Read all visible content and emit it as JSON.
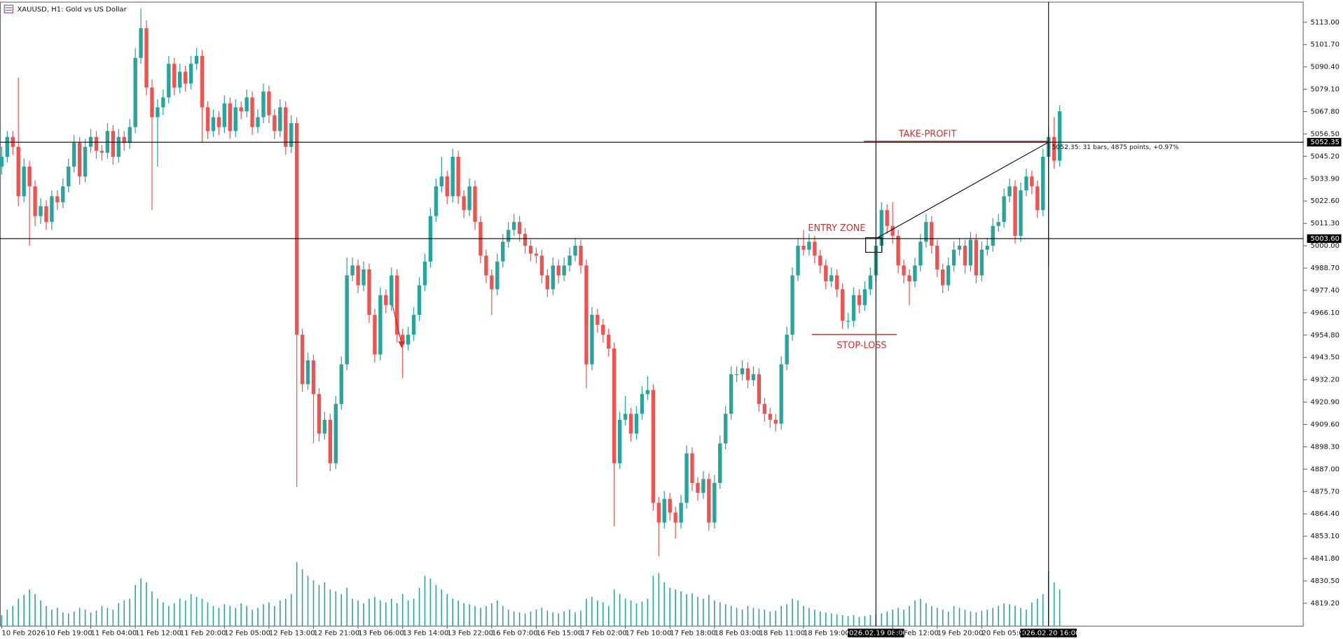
{
  "header": {
    "title": "XAUUSD, H1:  Gold vs US Dollar"
  },
  "chart_data": {
    "type": "candlestick",
    "up_color": "#26a69a",
    "down_color": "#ef5350",
    "volume_color": "#26a69a",
    "xlim": [
      -0.3,
      233.8
    ],
    "ylim": [
      4807.6,
      5123.4
    ],
    "yticks": [
      {
        "value": 5113,
        "label": "5113.00"
      },
      {
        "value": 5101.7,
        "label": "5101.70"
      },
      {
        "value": 5090.4,
        "label": "5090.40"
      },
      {
        "value": 5079.1,
        "label": "5079.10"
      },
      {
        "value": 5067.8,
        "label": "5067.80"
      },
      {
        "value": 5056.5,
        "label": "5056.50"
      },
      {
        "value": 5045.2,
        "label": "5045.20"
      },
      {
        "value": 5033.9,
        "label": "5033.90"
      },
      {
        "value": 5022.6,
        "label": "5022.60"
      },
      {
        "value": 5011.3,
        "label": "5011.30"
      },
      {
        "value": 5000,
        "label": "5000.00"
      },
      {
        "value": 4988.7,
        "label": "4988.70"
      },
      {
        "value": 4977.4,
        "label": "4977.40"
      },
      {
        "value": 4966.1,
        "label": "4966.10"
      },
      {
        "value": 4954.8,
        "label": "4954.80"
      },
      {
        "value": 4943.5,
        "label": "4943.50"
      },
      {
        "value": 4932.2,
        "label": "4932.20"
      },
      {
        "value": 4920.9,
        "label": "4920.90"
      },
      {
        "value": 4909.6,
        "label": "4909.60"
      },
      {
        "value": 4898.3,
        "label": "4898.30"
      },
      {
        "value": 4887,
        "label": "4887.00"
      },
      {
        "value": 4875.7,
        "label": "4875.70"
      },
      {
        "value": 4864.4,
        "label": "4864.40"
      },
      {
        "value": 4853.1,
        "label": "4853.10"
      },
      {
        "value": 4841.8,
        "label": "4841.80"
      },
      {
        "value": 4830.5,
        "label": "4830.50"
      },
      {
        "value": 4819.2,
        "label": "4819.20"
      }
    ],
    "xticks": [
      {
        "value": 0,
        "label": "10 Feb 2026"
      },
      {
        "value": 8,
        "label": "10 Feb 19:00"
      },
      {
        "value": 16,
        "label": "11 Feb 04:00"
      },
      {
        "value": 24,
        "label": "11 Feb 12:00"
      },
      {
        "value": 32,
        "label": "11 Feb 20:00"
      },
      {
        "value": 40,
        "label": "12 Feb 05:00"
      },
      {
        "value": 48,
        "label": "12 Feb 13:00"
      },
      {
        "value": 56,
        "label": "12 Feb 21:00"
      },
      {
        "value": 64,
        "label": "13 Feb 06:00"
      },
      {
        "value": 72,
        "label": "13 Feb 14:00"
      },
      {
        "value": 80,
        "label": "13 Feb 22:00"
      },
      {
        "value": 88,
        "label": "16 Feb 07:00"
      },
      {
        "value": 96,
        "label": "16 Feb 15:00"
      },
      {
        "value": 104,
        "label": "17 Feb 02:00"
      },
      {
        "value": 112,
        "label": "17 Feb 10:00"
      },
      {
        "value": 120,
        "label": "17 Feb 18:00"
      },
      {
        "value": 128,
        "label": "18 Feb 03:00"
      },
      {
        "value": 136,
        "label": "18 Feb 11:00"
      },
      {
        "value": 144,
        "label": "18 Feb 19:00"
      },
      {
        "value": 160,
        "label": "19 Feb 12:00"
      },
      {
        "value": 168,
        "label": "19 Feb 20:00"
      },
      {
        "value": 176,
        "label": "20 Feb 05:00"
      }
    ],
    "levels": [
      {
        "value": 5052.35,
        "label": "5052.35"
      },
      {
        "value": 5003.6,
        "label": "5003.60"
      }
    ],
    "cursor_times": [
      {
        "value": 157,
        "label": "2026.02.19 08:00"
      },
      {
        "value": 188,
        "label": "2026.02.20 16:00"
      }
    ],
    "annotations": {
      "take_profit": "TAKE-PROFIT",
      "entry_zone": "ENTRY ZONE",
      "stop_loss": "STOP-LOSS",
      "measure": "5052.35: 31 bars, 4875 points, +0.97%"
    },
    "ohlc": [
      [
        5040,
        5050,
        5036,
        5045
      ],
      [
        5045,
        5058,
        5042,
        5055
      ],
      [
        5055,
        5058,
        5046,
        5050
      ],
      [
        5050,
        5085,
        5020,
        5025
      ],
      [
        5025,
        5044,
        5022,
        5040
      ],
      [
        5040,
        5043,
        5000,
        5030
      ],
      [
        5030,
        5033,
        5010,
        5015
      ],
      [
        5015,
        5024,
        5011,
        5020
      ],
      [
        5020,
        5023,
        5008,
        5012
      ],
      [
        5012,
        5028,
        5008,
        5025
      ],
      [
        5025,
        5028,
        5018,
        5022
      ],
      [
        5022,
        5034,
        5019,
        5030
      ],
      [
        5030,
        5044,
        5027,
        5040
      ],
      [
        5040,
        5056,
        5037,
        5052
      ],
      [
        5052,
        5055,
        5031,
        5035
      ],
      [
        5035,
        5054,
        5032,
        5050
      ],
      [
        5050,
        5059,
        5047,
        5055
      ],
      [
        5055,
        5058,
        5044,
        5048
      ],
      [
        5048,
        5051,
        5043,
        5047
      ],
      [
        5047,
        5062,
        5044,
        5058
      ],
      [
        5058,
        5061,
        5041,
        5045
      ],
      [
        5045,
        5059,
        5042,
        5055
      ],
      [
        5055,
        5058,
        5048,
        5052
      ],
      [
        5052,
        5064,
        5049,
        5060
      ],
      [
        5060,
        5100,
        5057,
        5095
      ],
      [
        5095,
        5120,
        5092,
        5110
      ],
      [
        5110,
        5114,
        5076,
        5080
      ],
      [
        5080,
        5084,
        5018,
        5065
      ],
      [
        5065,
        5074,
        5040,
        5070
      ],
      [
        5070,
        5079,
        5066,
        5075
      ],
      [
        5075,
        5096,
        5072,
        5092
      ],
      [
        5092,
        5095,
        5076,
        5080
      ],
      [
        5080,
        5092,
        5077,
        5088
      ],
      [
        5088,
        5091,
        5078,
        5082
      ],
      [
        5082,
        5096,
        5079,
        5092
      ],
      [
        5092,
        5100,
        5089,
        5096
      ],
      [
        5096,
        5099,
        5052,
        5070
      ],
      [
        5070,
        5073,
        5054,
        5058
      ],
      [
        5058,
        5069,
        5055,
        5065
      ],
      [
        5065,
        5068,
        5056,
        5060
      ],
      [
        5060,
        5076,
        5057,
        5072
      ],
      [
        5072,
        5075,
        5054,
        5058
      ],
      [
        5058,
        5074,
        5055,
        5070
      ],
      [
        5070,
        5073,
        5064,
        5068
      ],
      [
        5068,
        5079,
        5065,
        5075
      ],
      [
        5075,
        5078,
        5056,
        5060
      ],
      [
        5060,
        5069,
        5057,
        5065
      ],
      [
        5065,
        5082,
        5062,
        5078
      ],
      [
        5078,
        5081,
        5062,
        5066
      ],
      [
        5066,
        5069,
        5054,
        5058
      ],
      [
        5058,
        5074,
        5055,
        5070
      ],
      [
        5070,
        5073,
        5046,
        5050
      ],
      [
        5050,
        5066,
        5047,
        5062
      ],
      [
        5062,
        5065,
        4878,
        4955
      ],
      [
        4955,
        4958,
        4926,
        4930
      ],
      [
        4930,
        4946,
        4927,
        4942
      ],
      [
        4942,
        4945,
        4900,
        4925
      ],
      [
        4925,
        4928,
        4901,
        4905
      ],
      [
        4905,
        4916,
        4902,
        4912
      ],
      [
        4912,
        4915,
        4886,
        4890
      ],
      [
        4890,
        4924,
        4887,
        4920
      ],
      [
        4920,
        4944,
        4917,
        4940
      ],
      [
        4940,
        4994,
        4937,
        4985
      ],
      [
        4985,
        4994,
        4982,
        4990
      ],
      [
        4990,
        4993,
        4976,
        4980
      ],
      [
        4980,
        4992,
        4977,
        4988
      ],
      [
        4988,
        4991,
        4961,
        4965
      ],
      [
        4965,
        4968,
        4941,
        4945
      ],
      [
        4945,
        4979,
        4942,
        4975
      ],
      [
        4975,
        4978,
        4966,
        4970
      ],
      [
        4970,
        4989,
        4967,
        4985
      ],
      [
        4985,
        4988,
        4951,
        4955
      ],
      [
        4955,
        4958,
        4933,
        4950
      ],
      [
        4950,
        4959,
        4947,
        4955
      ],
      [
        4955,
        4969,
        4952,
        4965
      ],
      [
        4965,
        4984,
        4962,
        4980
      ],
      [
        4980,
        4996,
        4977,
        4992
      ],
      [
        4992,
        5019,
        4989,
        5015
      ],
      [
        5015,
        5034,
        5012,
        5030
      ],
      [
        5030,
        5045,
        5027,
        5035
      ],
      [
        5035,
        5038,
        5021,
        5025
      ],
      [
        5025,
        5049,
        5022,
        5045
      ],
      [
        5045,
        5048,
        5021,
        5025
      ],
      [
        5025,
        5028,
        5014,
        5018
      ],
      [
        5018,
        5034,
        5015,
        5030
      ],
      [
        5030,
        5033,
        5008,
        5012
      ],
      [
        5012,
        5015,
        4991,
        4995
      ],
      [
        4995,
        4998,
        4981,
        4985
      ],
      [
        4985,
        4988,
        4965,
        4978
      ],
      [
        4978,
        4996,
        4975,
        4992
      ],
      [
        4992,
        5006,
        4989,
        5002
      ],
      [
        5002,
        5012,
        4999,
        5008
      ],
      [
        5008,
        5016,
        5005,
        5012
      ],
      [
        5012,
        5015,
        5002,
        5006
      ],
      [
        5006,
        5009,
        4996,
        5000
      ],
      [
        5000,
        5003,
        4992,
        4996
      ],
      [
        4996,
        4999,
        4991,
        4995
      ],
      [
        4995,
        4998,
        4981,
        4985
      ],
      [
        4985,
        4988,
        4974,
        4978
      ],
      [
        4978,
        4994,
        4975,
        4990
      ],
      [
        4990,
        4993,
        4981,
        4985
      ],
      [
        4985,
        4994,
        4982,
        4990
      ],
      [
        4990,
        4999,
        4987,
        4995
      ],
      [
        4995,
        5004,
        4992,
        5000
      ],
      [
        5000,
        5003,
        4986,
        4990
      ],
      [
        4990,
        4993,
        4928,
        4940
      ],
      [
        4940,
        4969,
        4937,
        4965
      ],
      [
        4965,
        4968,
        4956,
        4960
      ],
      [
        4960,
        4963,
        4951,
        4955
      ],
      [
        4955,
        4958,
        4944,
        4948
      ],
      [
        4948,
        4951,
        4858,
        4890
      ],
      [
        4890,
        4916,
        4887,
        4912
      ],
      [
        4912,
        4924,
        4909,
        4915
      ],
      [
        4915,
        4918,
        4901,
        4905
      ],
      [
        4905,
        4919,
        4902,
        4915
      ],
      [
        4915,
        4929,
        4912,
        4925
      ],
      [
        4925,
        4934,
        4922,
        4927
      ],
      [
        4927,
        4930,
        4866,
        4870
      ],
      [
        4870,
        4873,
        4843,
        4860
      ],
      [
        4860,
        4876,
        4857,
        4872
      ],
      [
        4872,
        4875,
        4861,
        4865
      ],
      [
        4865,
        4868,
        4852,
        4860
      ],
      [
        4860,
        4874,
        4857,
        4870
      ],
      [
        4870,
        4899,
        4867,
        4895
      ],
      [
        4895,
        4898,
        4876,
        4880
      ],
      [
        4880,
        4883,
        4871,
        4875
      ],
      [
        4875,
        4886,
        4872,
        4882
      ],
      [
        4882,
        4885,
        4856,
        4860
      ],
      [
        4860,
        4884,
        4857,
        4880
      ],
      [
        4880,
        4904,
        4877,
        4900
      ],
      [
        4900,
        4919,
        4897,
        4915
      ],
      [
        4915,
        4939,
        4912,
        4935
      ],
      [
        4935,
        4939,
        4931,
        4935
      ],
      [
        4935,
        4942,
        4932,
        4938
      ],
      [
        4938,
        4941,
        4928,
        4932
      ],
      [
        4932,
        4939,
        4929,
        4935
      ],
      [
        4935,
        4938,
        4916,
        4920
      ],
      [
        4920,
        4923,
        4911,
        4915
      ],
      [
        4915,
        4918,
        4908,
        4912
      ],
      [
        4912,
        4915,
        4906,
        4910
      ],
      [
        4910,
        4944,
        4907,
        4940
      ],
      [
        4940,
        4959,
        4937,
        4955
      ],
      [
        4955,
        4989,
        4952,
        4985
      ],
      [
        4985,
        5004,
        4982,
        5000
      ],
      [
        5000,
        5008,
        4995,
        4998
      ],
      [
        4998,
        5006,
        4995,
        5002
      ],
      [
        5002,
        5005,
        4991,
        4995
      ],
      [
        4995,
        4998,
        4986,
        4990
      ],
      [
        4990,
        4993,
        4978,
        4982
      ],
      [
        4982,
        4989,
        4979,
        4985
      ],
      [
        4985,
        4988,
        4974,
        4978
      ],
      [
        4978,
        4981,
        4958,
        4962
      ],
      [
        4962,
        4966,
        4958,
        4962
      ],
      [
        4962,
        4979,
        4959,
        4975
      ],
      [
        4975,
        4978,
        4966,
        4970
      ],
      [
        4970,
        4982,
        4967,
        4978
      ],
      [
        4978,
        4989,
        4975,
        4985
      ],
      [
        4985,
        5004,
        4982,
        5000
      ],
      [
        5000,
        5022,
        4997,
        5018
      ],
      [
        5018,
        5021,
        5006,
        5010
      ],
      [
        5010,
        5022,
        5001,
        5005
      ],
      [
        5005,
        5008,
        4986,
        4990
      ],
      [
        4990,
        4993,
        4981,
        4985
      ],
      [
        4985,
        4988,
        4970,
        4982
      ],
      [
        4982,
        4994,
        4979,
        4990
      ],
      [
        4990,
        5006,
        4987,
        5002
      ],
      [
        5002,
        5016,
        4999,
        5012
      ],
      [
        5012,
        5015,
        4996,
        5000
      ],
      [
        5000,
        5003,
        4984,
        4988
      ],
      [
        4988,
        4991,
        4976,
        4980
      ],
      [
        4980,
        4994,
        4977,
        4990
      ],
      [
        4990,
        5002,
        4987,
        4998
      ],
      [
        4998,
        5004,
        4995,
        5000
      ],
      [
        5000,
        5003,
        4986,
        4990
      ],
      [
        4990,
        5007,
        4987,
        5003
      ],
      [
        5003,
        5006,
        4981,
        4985
      ],
      [
        4985,
        5002,
        4982,
        4998
      ],
      [
        4998,
        5004,
        4995,
        5000
      ],
      [
        5000,
        5014,
        4997,
        5010
      ],
      [
        5010,
        5016,
        5007,
        5012
      ],
      [
        5012,
        5029,
        5009,
        5025
      ],
      [
        5025,
        5034,
        5022,
        5030
      ],
      [
        5030,
        5033,
        5001,
        5005
      ],
      [
        5005,
        5032,
        5002,
        5028
      ],
      [
        5028,
        5039,
        5025,
        5035
      ],
      [
        5035,
        5038,
        5026,
        5030
      ],
      [
        5030,
        5033,
        5014,
        5018
      ],
      [
        5018,
        5049,
        5015,
        5045
      ],
      [
        5045,
        5060,
        4990,
        5055
      ],
      [
        5055,
        5065,
        5039,
        5043
      ],
      [
        5043,
        5071,
        5040,
        5068
      ]
    ],
    "volume": [
      12,
      18,
      22,
      30,
      34,
      40,
      35,
      28,
      22,
      18,
      20,
      15,
      14,
      16,
      20,
      18,
      15,
      17,
      22,
      20,
      18,
      25,
      28,
      30,
      45,
      52,
      48,
      38,
      30,
      26,
      22,
      25,
      30,
      28,
      35,
      32,
      30,
      26,
      22,
      20,
      24,
      22,
      20,
      25,
      22,
      18,
      20,
      24,
      26,
      22,
      28,
      30,
      35,
      70,
      62,
      55,
      50,
      45,
      48,
      40,
      38,
      35,
      42,
      30,
      28,
      25,
      30,
      32,
      28,
      26,
      30,
      25,
      35,
      28,
      30,
      42,
      55,
      52,
      45,
      40,
      35,
      30,
      28,
      25,
      24,
      22,
      20,
      22,
      25,
      28,
      22,
      18,
      16,
      15,
      14,
      16,
      18,
      20,
      17,
      15,
      14,
      16,
      18,
      15,
      17,
      30,
      32,
      28,
      26,
      22,
      40,
      35,
      30,
      28,
      25,
      27,
      30,
      55,
      58,
      48,
      42,
      40,
      38,
      35,
      36,
      32,
      30,
      34,
      28,
      26,
      24,
      22,
      20,
      18,
      22,
      20,
      19,
      18,
      16,
      17,
      22,
      24,
      30,
      28,
      22,
      20,
      18,
      16,
      15,
      14,
      13,
      12,
      11,
      12,
      10,
      11,
      12,
      13,
      14,
      16,
      18,
      20,
      18,
      22,
      28,
      30,
      25,
      22,
      20,
      18,
      16,
      22,
      20,
      18,
      16,
      15,
      17,
      18,
      20,
      22,
      25,
      24,
      22,
      20,
      18,
      26,
      30,
      35,
      60,
      48,
      40
    ]
  }
}
